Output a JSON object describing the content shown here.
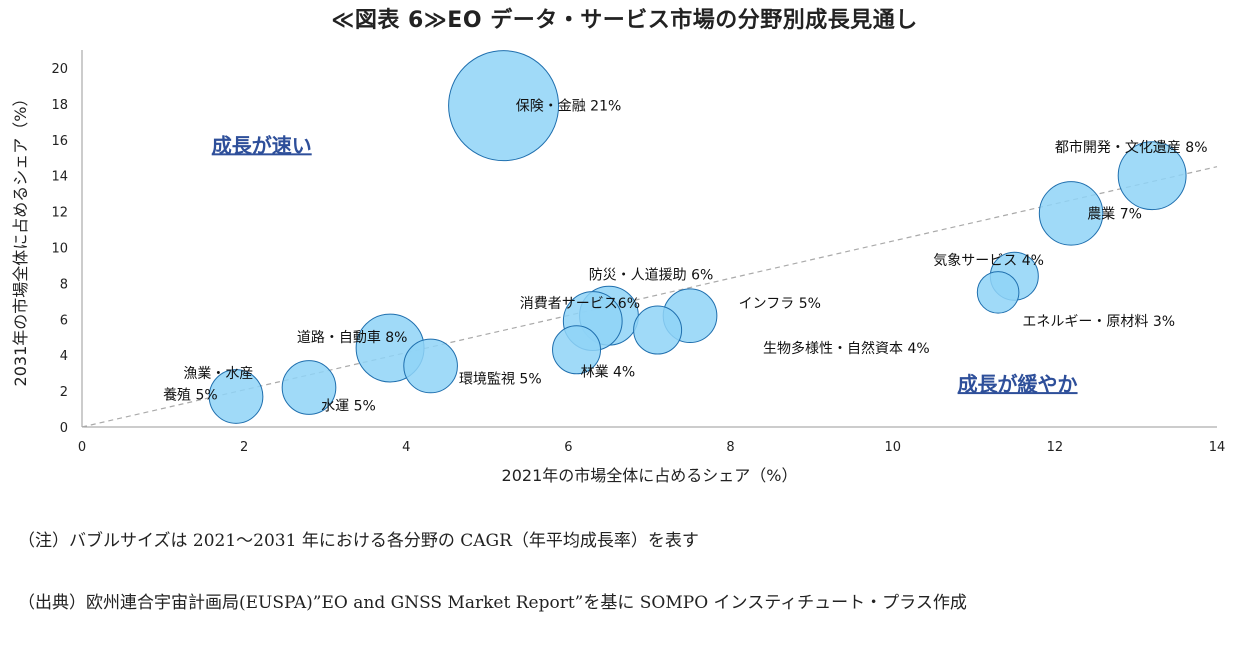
{
  "title": "≪図表 6≫EO データ・サービス市場の分野別成長見通し",
  "chart_data": {
    "type": "scatter",
    "xlabel": "2021年の市場全体に占めるシェア（%）",
    "ylabel": "2031年の市場全体に占めるシェア（%）",
    "xlim": [
      0,
      14
    ],
    "ylim": [
      0,
      21
    ],
    "xticks": [
      0,
      2,
      4,
      6,
      8,
      10,
      12,
      14
    ],
    "yticks": [
      0,
      2,
      4,
      6,
      8,
      10,
      12,
      14,
      16,
      18,
      20
    ],
    "grid": false,
    "size_variable": "CAGR (%)",
    "diagonal": {
      "from": [
        0,
        0
      ],
      "to": [
        14,
        14.5
      ],
      "style": "dashed"
    },
    "annotations": [
      {
        "text": "成長が速い",
        "x": 1.6,
        "y": 15.3
      },
      {
        "text": "成長が緩やか",
        "x": 10.8,
        "y": 2.0
      }
    ],
    "points": [
      {
        "name": "保険・金融 21%",
        "x": 5.2,
        "y": 17.9,
        "size": 21,
        "lx": 5.35,
        "ly": 17.9
      },
      {
        "name": "都市開発・文化遺産 8%",
        "x": 13.2,
        "y": 14.0,
        "size": 8,
        "lx": 12.0,
        "ly": 15.6
      },
      {
        "name": "農業 7%",
        "x": 12.2,
        "y": 11.9,
        "size": 7,
        "lx": 12.4,
        "ly": 11.9
      },
      {
        "name": "気象サービス 4%",
        "x": 11.5,
        "y": 8.4,
        "size": 4,
        "lx": 10.5,
        "ly": 9.3
      },
      {
        "name": "エネルギー・原材料 3%",
        "x": 11.3,
        "y": 7.5,
        "size": 3,
        "lx": 11.6,
        "ly": 5.9
      },
      {
        "name": "防災・人道援助 6%",
        "x": 6.5,
        "y": 6.2,
        "size": 6,
        "lx": 6.25,
        "ly": 8.5
      },
      {
        "name": "消費者サービス6%",
        "x": 6.3,
        "y": 5.9,
        "size": 6,
        "lx": 5.4,
        "ly": 6.9
      },
      {
        "name": "インフラ 5%",
        "x": 7.5,
        "y": 6.2,
        "size": 5,
        "lx": 8.1,
        "ly": 6.9
      },
      {
        "name": "生物多様性・自然資本 4%",
        "x": 7.1,
        "y": 5.4,
        "size": 4,
        "lx": 8.4,
        "ly": 4.4
      },
      {
        "name": "林業 4%",
        "x": 6.1,
        "y": 4.3,
        "size": 4,
        "lx": 6.15,
        "ly": 3.1
      },
      {
        "name": "道路・自動車 8%",
        "x": 3.8,
        "y": 4.4,
        "size": 8,
        "lx": 2.65,
        "ly": 5.0
      },
      {
        "name": "環境監視 5%",
        "x": 4.3,
        "y": 3.4,
        "size": 5,
        "lx": 4.65,
        "ly": 2.7
      },
      {
        "name": "水運 5%",
        "x": 2.8,
        "y": 2.2,
        "size": 5,
        "lx": 2.95,
        "ly": 1.2
      },
      {
        "name": "漁業・水産",
        "x": 1.9,
        "y": 1.7,
        "size": 5,
        "lx": 1.25,
        "ly": 3.0
      },
      {
        "name": "養殖 5%",
        "x": 1.9,
        "y": 1.7,
        "size": 5,
        "lx": 1.0,
        "ly": 1.8
      }
    ]
  },
  "notes": [
    "（注）バブルサイズは 2021～2031 年における各分野の CAGR（年平均成長率）を表す",
    "（出典）欧州連合宇宙計画局(EUSPA)”EO and GNSS Market Report”を基に SOMPO インスティチュート・プラス作成"
  ],
  "colors": {
    "bubble_fill": "#8fd3f7",
    "bubble_stroke": "#1f6fae",
    "annotation": "#2e4f9a",
    "diagonal": "#aaaaaa"
  }
}
